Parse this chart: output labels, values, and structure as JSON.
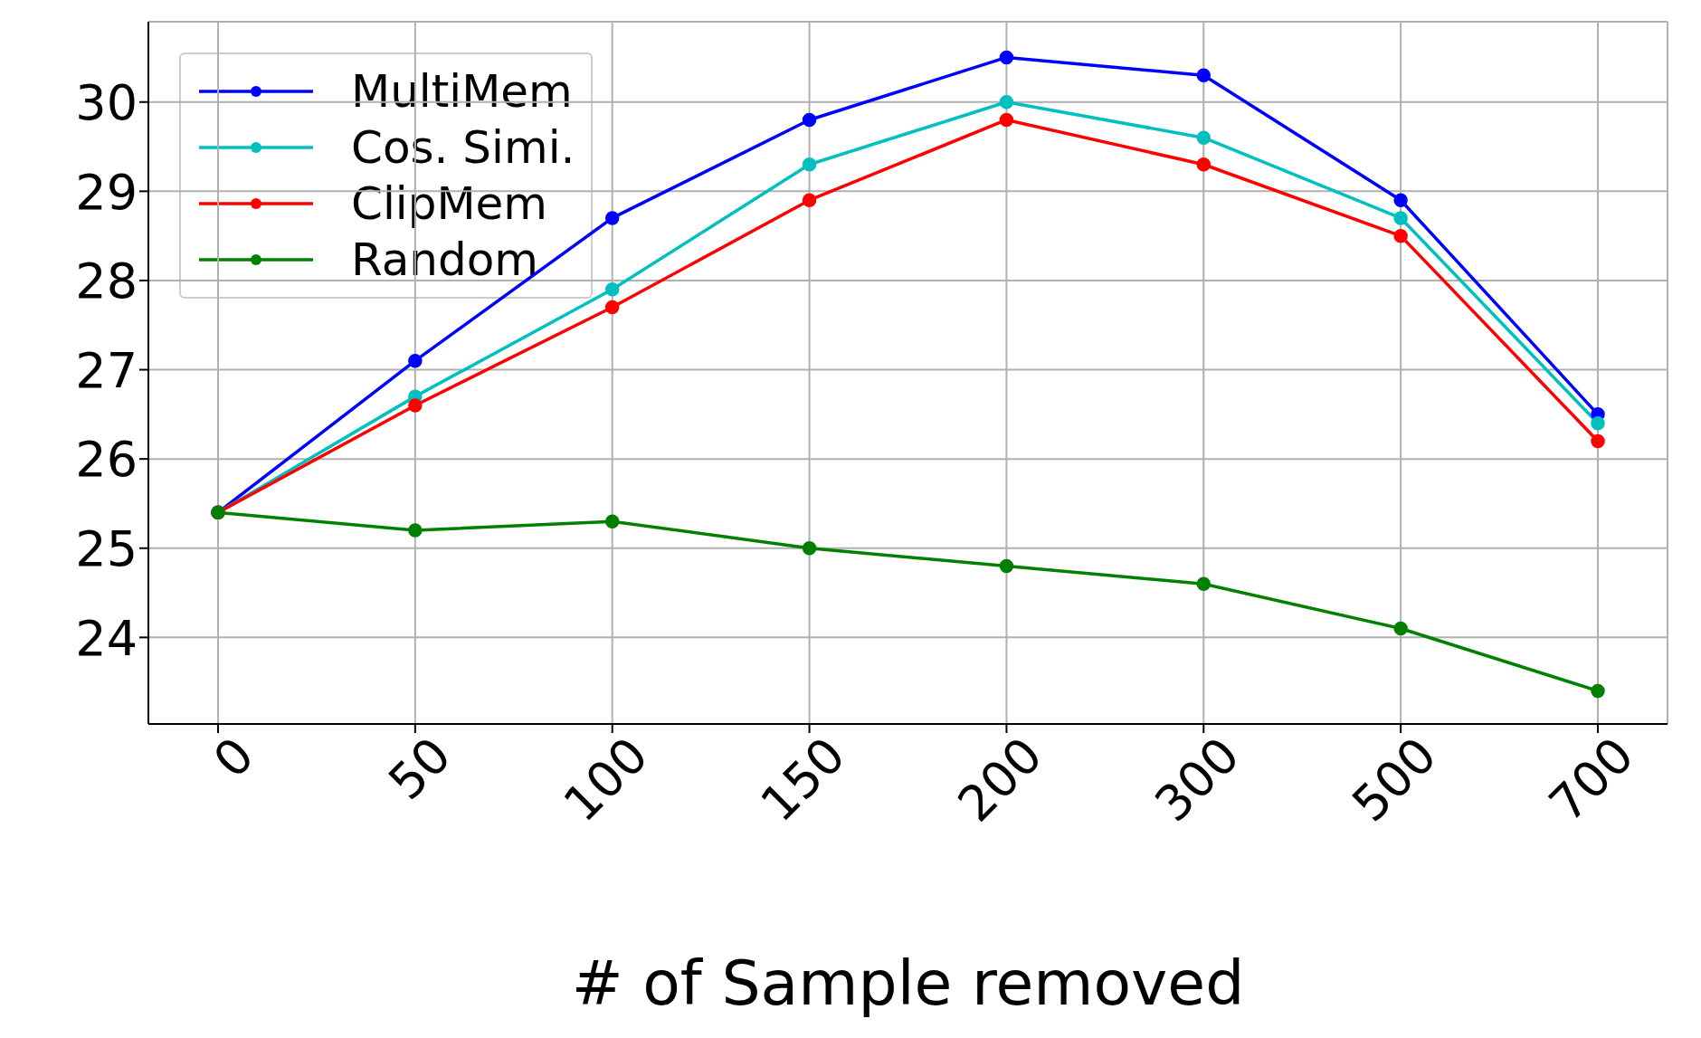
{
  "chart_data": {
    "type": "line",
    "xlabel": "# of Sample removed",
    "categories": [
      "0",
      "50",
      "100",
      "150",
      "200",
      "300",
      "500",
      "700"
    ],
    "series": [
      {
        "name": "MultiMem",
        "color": "#0000ff",
        "values": [
          25.4,
          27.1,
          28.7,
          29.8,
          30.5,
          30.3,
          28.9,
          26.5
        ]
      },
      {
        "name": "Cos. Simi.",
        "color": "#00bfbf",
        "values": [
          25.4,
          26.7,
          27.9,
          29.3,
          30.0,
          29.6,
          28.7,
          26.4
        ]
      },
      {
        "name": "ClipMem",
        "color": "#ff0000",
        "values": [
          25.4,
          26.6,
          27.7,
          28.9,
          29.8,
          29.3,
          28.5,
          26.2
        ]
      },
      {
        "name": "Random",
        "color": "#008000",
        "values": [
          25.4,
          25.2,
          25.3,
          25.0,
          24.8,
          24.6,
          24.1,
          23.4
        ]
      }
    ],
    "ylim": [
      23.03,
      30.9
    ],
    "yticks": [
      24,
      25,
      26,
      27,
      28,
      29,
      30
    ],
    "grid": true,
    "legend": "top left",
    "marker": "circle",
    "line_style": "solid"
  }
}
